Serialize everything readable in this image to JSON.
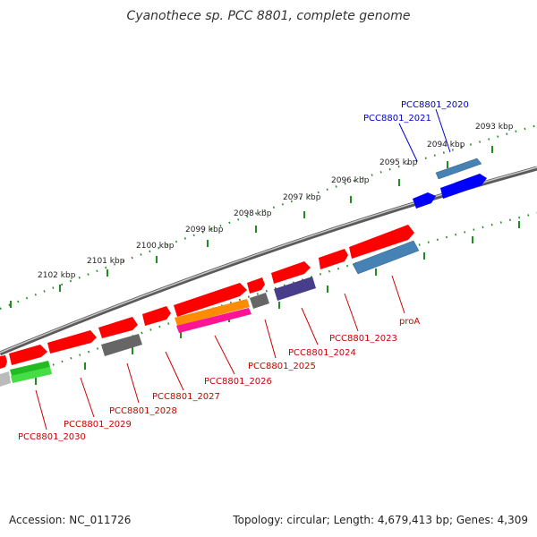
{
  "title": "Cyanothece sp. PCC 8801, complete genome",
  "footer": {
    "accession": "Accession: NC_011726",
    "info": "Topology: circular; Length: 4,679,413 bp; Genes: 4,309"
  },
  "colors": {
    "red_gene": "#ff0000",
    "blue_gene": "#0000ff",
    "steel_blue_gene": "#4682b4",
    "grey_gene": "#666666",
    "orange_gene": "#ff8c00",
    "pink_gene": "#ff1493",
    "slate_gene": "#483d8b",
    "green_gene": "#22bb22",
    "tick_green": "#228B22",
    "backbone": "#888888",
    "label_red": "#cc0000",
    "label_blue": "#0000cc"
  },
  "scale_labels": [
    "2093 kbp",
    "2094 kbp",
    "2095 kbp",
    "2096 kbp",
    "2097 kbp",
    "2098 kbp",
    "2099 kbp",
    "2100 kbp",
    "2101 kbp",
    "2102 kbp"
  ],
  "gene_labels": {
    "pcc8801_2020": "PCC8801_2020",
    "pcc8801_2021": "PCC8801_2021",
    "pcc8801_2023": "PCC8801_2023",
    "pcc8801_2024": "PCC8801_2024",
    "pcc8801_2025": "PCC8801_2025",
    "pcc8801_2026": "PCC8801_2026",
    "pcc8801_2027": "PCC8801_2027",
    "pcc8801_2028": "PCC8801_2028",
    "pcc8801_2029": "PCC8801_2029",
    "pcc8801_2030": "PCC8801_2030",
    "proA": "proA"
  }
}
